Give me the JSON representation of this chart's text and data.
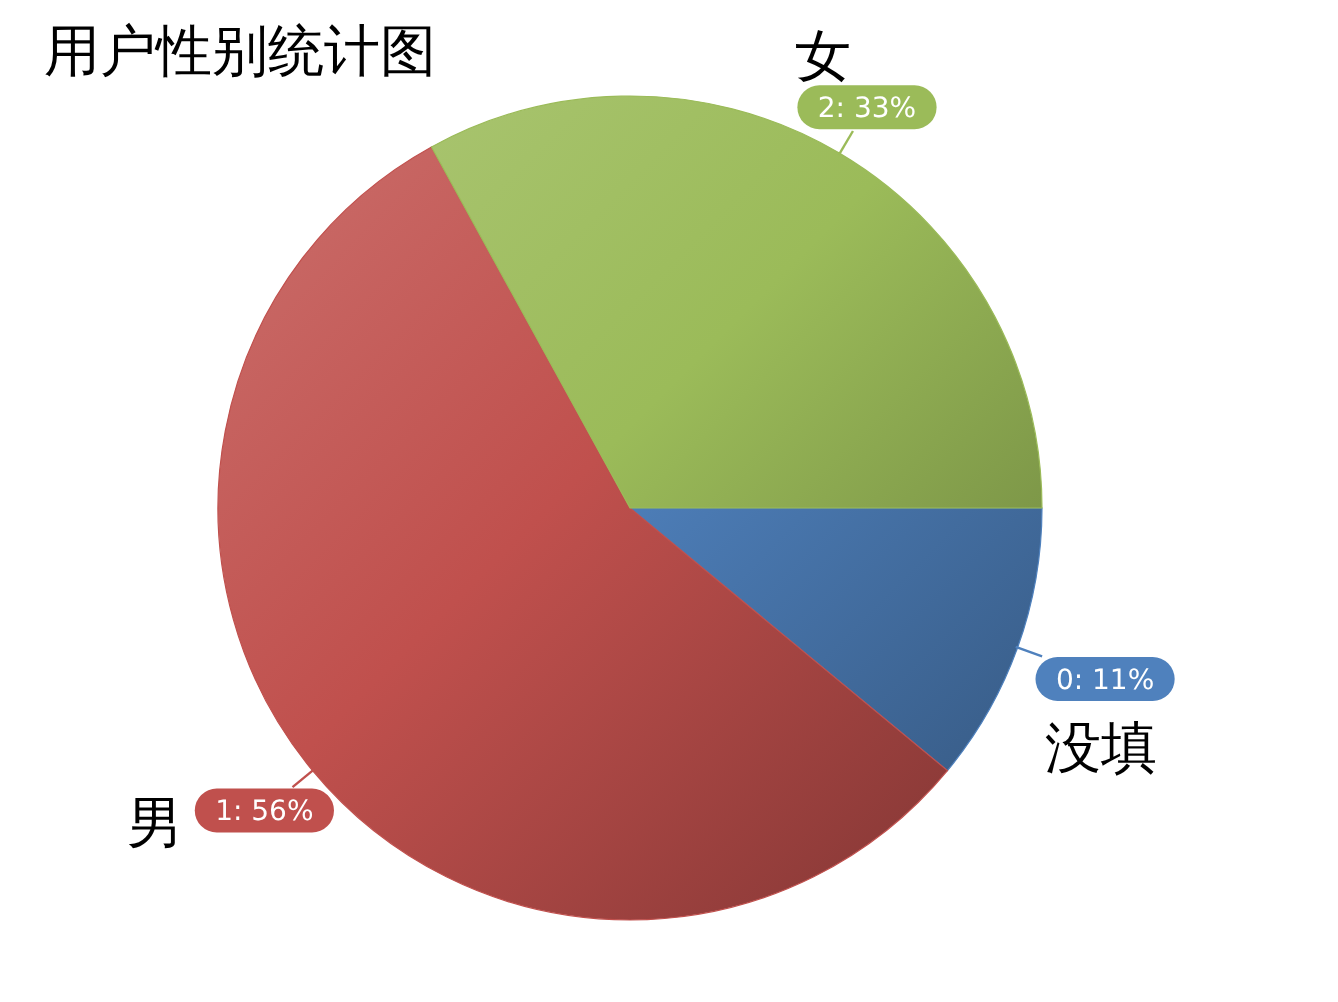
{
  "chart_data": {
    "type": "pie",
    "title": "用户性别统计图",
    "categories": [
      "没填",
      "男",
      "女"
    ],
    "values": [
      11,
      56,
      33
    ],
    "colors": [
      "#4f81bd",
      "#c0504d",
      "#9bbb59"
    ],
    "value_labels": [
      "0: 11%",
      "1: 56%",
      "2: 33%"
    ]
  }
}
